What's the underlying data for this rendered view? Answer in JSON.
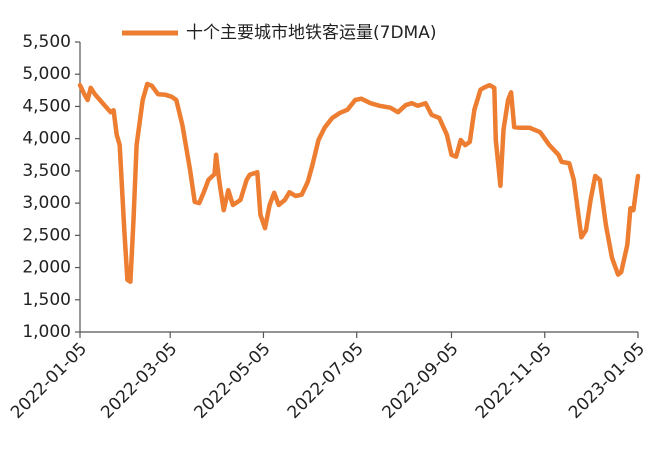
{
  "chart_data": {
    "type": "line",
    "x": [
      "2022-01-05",
      "2022-01-08",
      "2022-01-10",
      "2022-01-12",
      "2022-01-15",
      "2022-01-21",
      "2022-01-25",
      "2022-01-27",
      "2022-01-29",
      "2022-01-31",
      "2022-02-03",
      "2022-02-05",
      "2022-02-07",
      "2022-02-09",
      "2022-02-11",
      "2022-02-15",
      "2022-02-18",
      "2022-02-21",
      "2022-02-25",
      "2022-03-02",
      "2022-03-06",
      "2022-03-09",
      "2022-03-13",
      "2022-03-18",
      "2022-03-21",
      "2022-03-24",
      "2022-03-27",
      "2022-03-30",
      "2022-04-03",
      "2022-04-04",
      "2022-04-06",
      "2022-04-09",
      "2022-04-12",
      "2022-04-15",
      "2022-04-20",
      "2022-04-24",
      "2022-04-26",
      "2022-05-01",
      "2022-05-03",
      "2022-05-06",
      "2022-05-09",
      "2022-05-12",
      "2022-05-15",
      "2022-05-19",
      "2022-05-22",
      "2022-05-26",
      "2022-05-30",
      "2022-06-03",
      "2022-06-06",
      "2022-06-10",
      "2022-06-14",
      "2022-06-19",
      "2022-06-24",
      "2022-06-29",
      "2022-07-04",
      "2022-07-08",
      "2022-07-14",
      "2022-07-20",
      "2022-07-27",
      "2022-08-01",
      "2022-08-06",
      "2022-08-10",
      "2022-08-14",
      "2022-08-19",
      "2022-08-23",
      "2022-08-28",
      "2022-09-02",
      "2022-09-05",
      "2022-09-08",
      "2022-09-11",
      "2022-09-14",
      "2022-09-17",
      "2022-09-20",
      "2022-09-24",
      "2022-09-27",
      "2022-09-30",
      "2022-10-03",
      "2022-10-04",
      "2022-10-07",
      "2022-10-09",
      "2022-10-12",
      "2022-10-14",
      "2022-10-16",
      "2022-10-20",
      "2022-10-26",
      "2022-11-02",
      "2022-11-08",
      "2022-11-14",
      "2022-11-16",
      "2022-11-21",
      "2022-11-24",
      "2022-11-27",
      "2022-11-29",
      "2022-12-02",
      "2022-12-05",
      "2022-12-08",
      "2022-12-11",
      "2022-12-15",
      "2022-12-19",
      "2022-12-23",
      "2022-12-25",
      "2022-12-29",
      "2022-12-31",
      "2023-01-02",
      "2023-01-05"
    ],
    "series": [
      {
        "name": "十个主要城市地铁客运量(7DMA)",
        "color": "#ed7d31",
        "values": [
          4830,
          4680,
          4600,
          4790,
          4680,
          4520,
          4410,
          4440,
          4060,
          3900,
          2580,
          1810,
          1780,
          2740,
          3900,
          4600,
          4850,
          4820,
          4690,
          4680,
          4650,
          4600,
          4210,
          3510,
          3020,
          3000,
          3170,
          3360,
          3450,
          3750,
          3360,
          2890,
          3200,
          2970,
          3050,
          3360,
          3440,
          3480,
          2820,
          2610,
          2970,
          3160,
          2970,
          3050,
          3170,
          3110,
          3130,
          3330,
          3590,
          3980,
          4170,
          4320,
          4400,
          4450,
          4600,
          4620,
          4550,
          4510,
          4480,
          4410,
          4520,
          4550,
          4510,
          4550,
          4370,
          4320,
          4060,
          3750,
          3720,
          3980,
          3900,
          3950,
          4450,
          4760,
          4800,
          4830,
          4790,
          3980,
          3270,
          4140,
          4600,
          4720,
          4180,
          4170,
          4170,
          4100,
          3900,
          3750,
          3640,
          3620,
          3360,
          2820,
          2470,
          2580,
          3050,
          3420,
          3360,
          2660,
          2150,
          1890,
          1930,
          2350,
          2920,
          2890,
          3420
        ]
      }
    ],
    "xlim": [
      "2022-01-05",
      "2023-01-05"
    ],
    "xticks": [
      "2022-01-05",
      "2022-03-05",
      "2022-05-05",
      "2022-07-05",
      "2022-09-05",
      "2022-11-05",
      "2023-01-05"
    ],
    "ylim": [
      1000,
      5500
    ],
    "yticks": [
      {
        "value": 1000,
        "label": "1,000"
      },
      {
        "value": 1500,
        "label": "1,500"
      },
      {
        "value": 2000,
        "label": "2,000"
      },
      {
        "value": 2500,
        "label": "2,500"
      },
      {
        "value": 3000,
        "label": "3,000"
      },
      {
        "value": 3500,
        "label": "3,500"
      },
      {
        "value": 4000,
        "label": "4,000"
      },
      {
        "value": 4500,
        "label": "4,500"
      },
      {
        "value": 5000,
        "label": "5,000"
      },
      {
        "value": 5500,
        "label": "5,500"
      }
    ],
    "legend": "top",
    "grid": false
  }
}
